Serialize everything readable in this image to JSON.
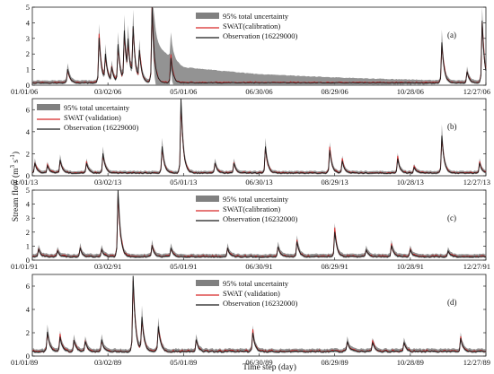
{
  "figure": {
    "xlabel": "Time step (day)",
    "ylabel_main": "Stream flow (m",
    "ylabel_sup1": "3",
    "ylabel_mid": " s",
    "ylabel_sup2": "-1",
    "ylabel_end": ")"
  },
  "chart_data": [
    {
      "type": "line",
      "panel": "(a)",
      "x_ticks": [
        "01/01/06",
        "03/02/06",
        "05/01/06",
        "06/30/06",
        "08/29/06",
        "10/28/06",
        "12/27/06"
      ],
      "y_ticks": [
        "0",
        "1",
        "2",
        "3",
        "4",
        "5"
      ],
      "ylim": [
        0,
        5
      ],
      "day_range": [
        0,
        360
      ],
      "legend": [
        "95% total uncertainty",
        "SWAT(calibration)",
        "Observation (16229000)"
      ],
      "legend_position": "top-right",
      "baseline": 0.15,
      "peaks": [
        [
          28,
          0.9
        ],
        [
          53,
          2.9
        ],
        [
          58,
          1.7
        ],
        [
          63,
          0.9
        ],
        [
          68,
          2.4
        ],
        [
          73,
          3.2
        ],
        [
          76,
          2.2
        ],
        [
          80,
          3.3
        ],
        [
          85,
          1.9
        ],
        [
          95,
          4.9
        ],
        [
          110,
          1.6
        ],
        [
          325,
          2.6
        ],
        [
          345,
          0.7
        ],
        [
          357,
          4.0
        ]
      ],
      "band_decay": [
        [
          95,
          2.6
        ],
        [
          120,
          1.0
        ],
        [
          180,
          0.55
        ],
        [
          240,
          0.35
        ]
      ],
      "colors": {
        "band": "#808080",
        "sim": "#d62728",
        "obs": "#1a1a1a"
      }
    },
    {
      "type": "line",
      "panel": "(b)",
      "x_ticks": [
        "01/01/13",
        "03/02/13",
        "05/01/13",
        "06/30/13",
        "08/29/13",
        "10/28/13",
        "12/27/13"
      ],
      "y_ticks": [
        "0",
        "2",
        "4",
        "6"
      ],
      "ylim": [
        0,
        7
      ],
      "day_range": [
        0,
        360
      ],
      "legend": [
        "95% total uncertainty",
        "SWAT (validation)",
        "Observation (16229000)"
      ],
      "legend_position": "top-left",
      "baseline": 0.25,
      "peaks": [
        [
          2,
          0.9
        ],
        [
          12,
          0.7
        ],
        [
          22,
          1.2
        ],
        [
          43,
          0.9
        ],
        [
          56,
          1.8
        ],
        [
          103,
          2.4
        ],
        [
          118,
          6.8
        ],
        [
          145,
          0.9
        ],
        [
          160,
          0.9
        ],
        [
          185,
          2.4
        ],
        [
          236,
          2.1
        ],
        [
          246,
          1.1
        ],
        [
          290,
          1.3
        ],
        [
          303,
          0.5
        ],
        [
          325,
          3.4
        ],
        [
          355,
          0.9
        ]
      ],
      "band_decay": [],
      "colors": {
        "band": "#808080",
        "sim": "#d62728",
        "obs": "#1a1a1a"
      }
    },
    {
      "type": "line",
      "panel": "(c)",
      "x_ticks": [
        "01/01/91",
        "03/02/91",
        "05/01/91",
        "06/30/91",
        "08/29/91",
        "10/28/91",
        "12/27/91"
      ],
      "y_ticks": [
        "0",
        "1",
        "2",
        "3",
        "4",
        "5"
      ],
      "ylim": [
        0,
        5
      ],
      "day_range": [
        0,
        360
      ],
      "legend": [
        "95% total uncertainty",
        "SWAT(calibration)",
        "Observation (16232000)"
      ],
      "legend_position": "top-right",
      "baseline": 0.25,
      "peaks": [
        [
          5,
          0.5
        ],
        [
          20,
          0.4
        ],
        [
          38,
          0.6
        ],
        [
          55,
          0.5
        ],
        [
          68,
          4.9
        ],
        [
          95,
          0.8
        ],
        [
          110,
          0.6
        ],
        [
          155,
          0.6
        ],
        [
          195,
          0.7
        ],
        [
          210,
          1.1
        ],
        [
          240,
          1.8
        ],
        [
          265,
          0.5
        ],
        [
          285,
          0.8
        ],
        [
          300,
          0.5
        ],
        [
          330,
          0.4
        ]
      ],
      "band_decay": [],
      "colors": {
        "band": "#808080",
        "sim": "#d62728",
        "obs": "#1a1a1a"
      }
    },
    {
      "type": "line",
      "panel": "(d)",
      "x_ticks": [
        "01/01/89",
        "03/02/89",
        "05/01/89",
        "06/30/89",
        "08/29/89",
        "10/28/89",
        "12/27/89"
      ],
      "y_ticks": [
        "0",
        "2",
        "4",
        "6"
      ],
      "ylim": [
        0,
        7
      ],
      "day_range": [
        0,
        360
      ],
      "legend": [
        "95% total uncertainty",
        "SWAT (validation)",
        "Observation (16232000)"
      ],
      "legend_position": "top-right",
      "baseline": 0.4,
      "peaks": [
        [
          12,
          1.7
        ],
        [
          22,
          1.2
        ],
        [
          33,
          1.0
        ],
        [
          42,
          0.9
        ],
        [
          55,
          1.0
        ],
        [
          80,
          6.5
        ],
        [
          87,
          2.8
        ],
        [
          100,
          2.2
        ],
        [
          130,
          1.0
        ],
        [
          175,
          1.6
        ],
        [
          250,
          0.9
        ],
        [
          270,
          0.8
        ],
        [
          295,
          0.8
        ],
        [
          340,
          1.1
        ]
      ],
      "band_decay": [],
      "colors": {
        "band": "#808080",
        "sim": "#d62728",
        "obs": "#1a1a1a"
      }
    }
  ]
}
